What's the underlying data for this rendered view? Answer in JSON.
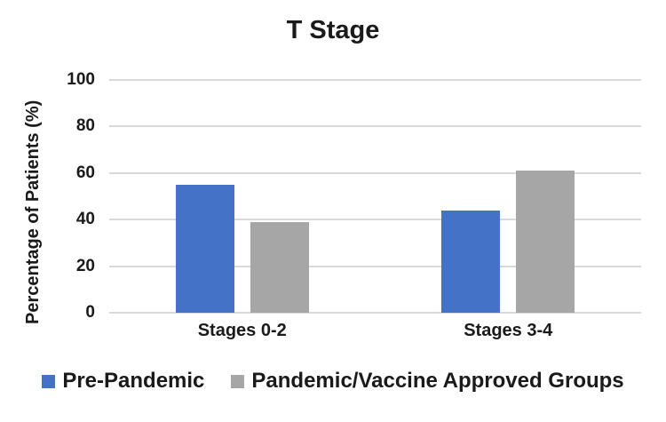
{
  "chart_data": {
    "type": "bar",
    "title": "T Stage",
    "ylabel": "Percentage of Patients (%)",
    "xlabel": "",
    "categories": [
      "Stages 0-2",
      "Stages 3-4"
    ],
    "series": [
      {
        "name": "Pre-Pandemic",
        "color": "#4472C4",
        "values": [
          55,
          44
        ]
      },
      {
        "name": "Pandemic/Vaccine Approved Groups",
        "color": "#A6A6A6",
        "values": [
          39,
          61
        ]
      }
    ],
    "ylim": [
      0,
      100
    ],
    "yticks": [
      0,
      20,
      40,
      60,
      80,
      100
    ],
    "grid": true,
    "legend_position": "bottom",
    "colors": {
      "gridline": "#D9D9D9",
      "text": "#1a1a1a",
      "background": "#FFFFFF"
    }
  }
}
